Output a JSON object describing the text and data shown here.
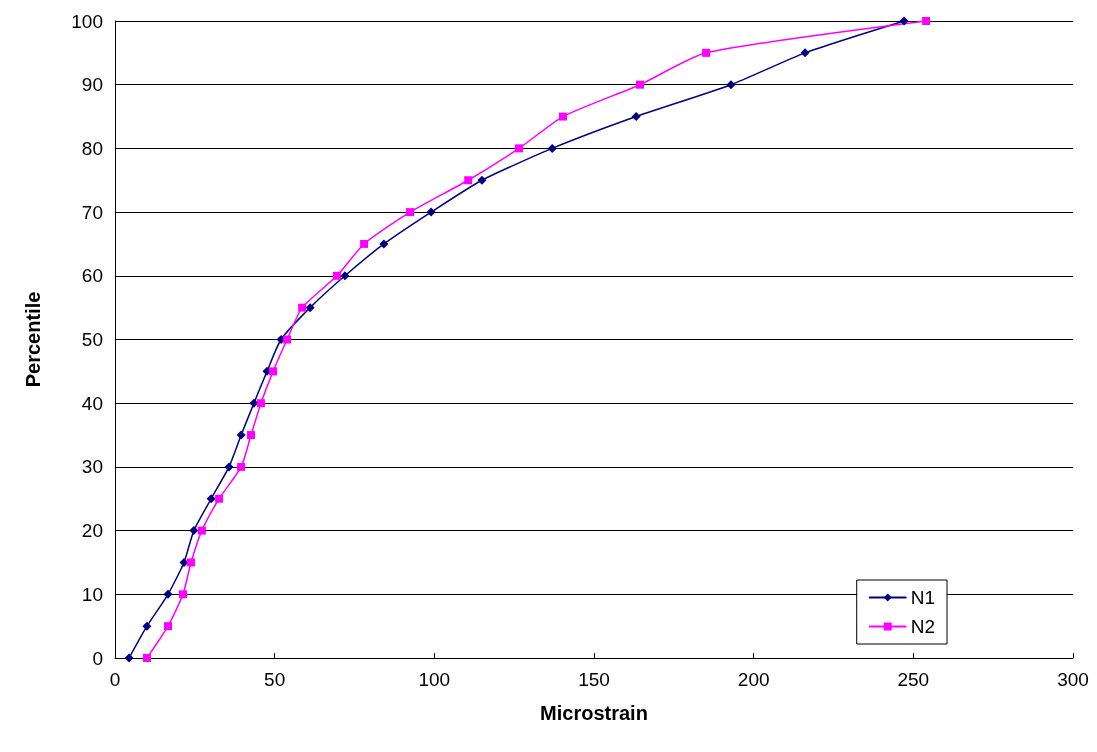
{
  "chart_data": {
    "type": "line",
    "xlabel": "Microstrain",
    "ylabel": "Percentile",
    "xlim": [
      0,
      300
    ],
    "xticks": [
      0,
      50,
      100,
      150,
      200,
      250,
      300
    ],
    "ylim": [
      0,
      100
    ],
    "yticks": [
      0,
      10,
      20,
      30,
      40,
      50,
      60,
      70,
      80,
      90,
      100
    ],
    "grid": "y",
    "legend": "bottom right",
    "series": [
      {
        "name": "N1",
        "color": "#000080",
        "marker": "diamond",
        "x": [
          4.4,
          10.0,
          16.6,
          21.6,
          24.7,
          30.1,
          35.7,
          39.5,
          43.5,
          47.6,
          52.0,
          61.1,
          72.0,
          84.2,
          99.0,
          114.9,
          136.9,
          163.2,
          192.9,
          216.1,
          247.1
        ],
        "values": [
          0,
          5,
          10,
          15,
          20,
          25,
          30,
          35,
          40,
          45,
          50,
          55,
          60,
          65,
          70,
          75,
          80,
          85,
          90,
          95,
          100
        ]
      },
      {
        "name": "N2",
        "color": "#ff00ff",
        "marker": "square",
        "x": [
          10.0,
          16.6,
          21.3,
          23.8,
          27.2,
          32.6,
          39.5,
          42.6,
          45.7,
          49.5,
          53.9,
          58.6,
          69.5,
          78.0,
          92.4,
          110.6,
          126.5,
          140.3,
          164.4,
          185.1,
          254.0
        ],
        "values": [
          0,
          5,
          10,
          15,
          20,
          25,
          30,
          35,
          40,
          45,
          50,
          55,
          60,
          65,
          70,
          75,
          80,
          85,
          90,
          95,
          100
        ]
      }
    ]
  }
}
